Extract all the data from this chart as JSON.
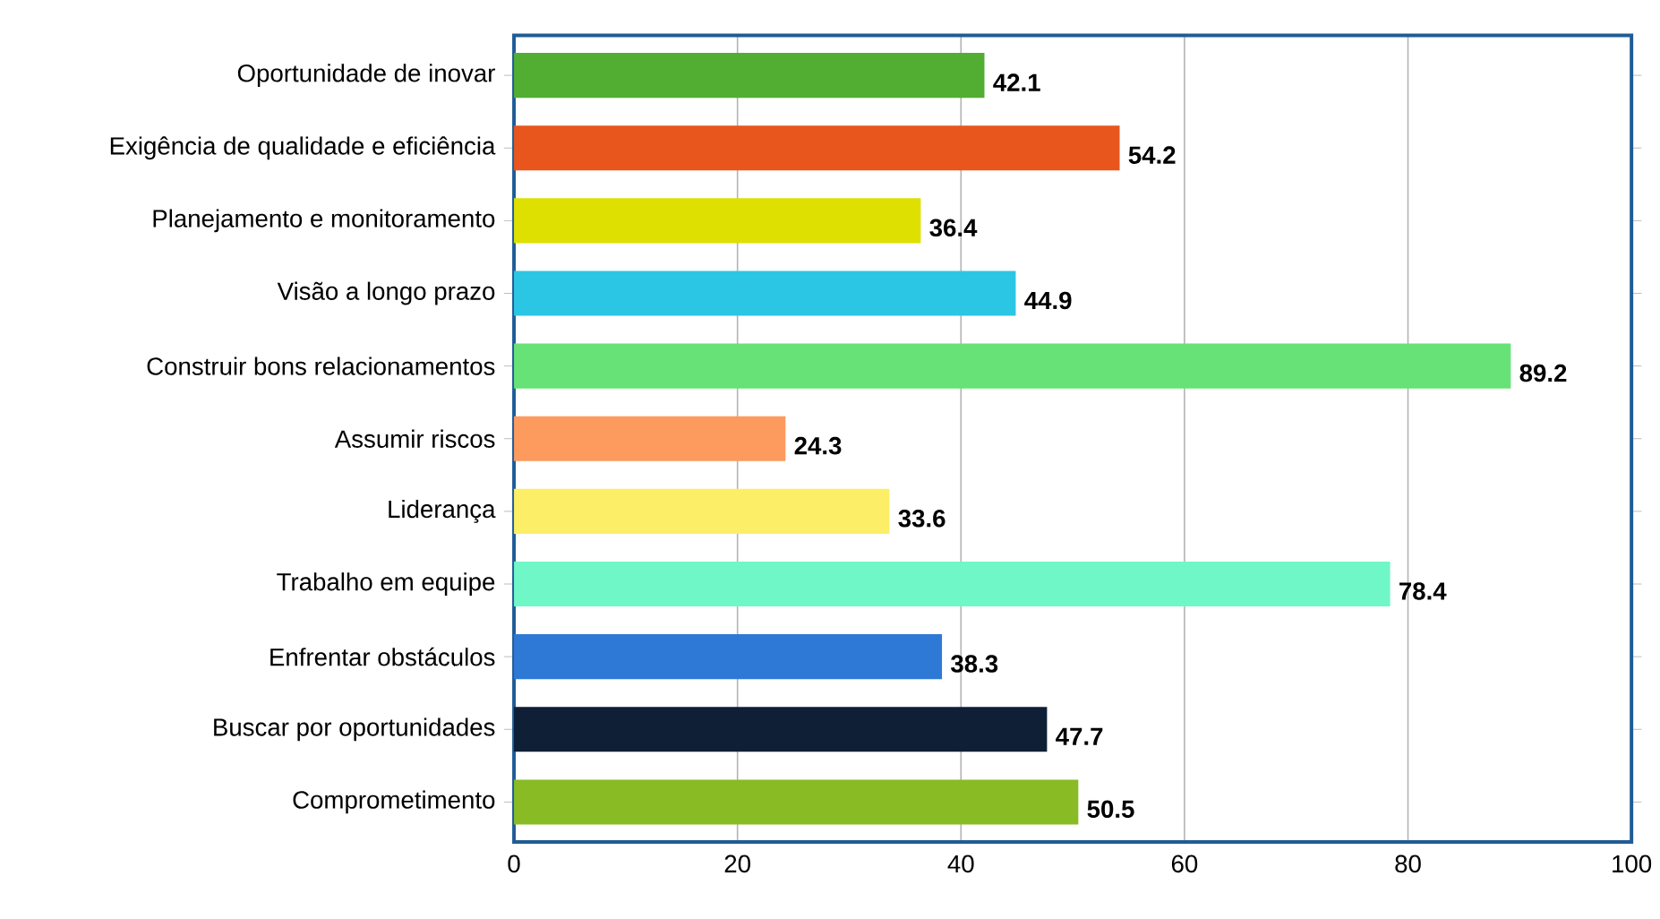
{
  "chart_data": {
    "type": "bar",
    "orientation": "horizontal",
    "categories": [
      "Oportunidade de inovar",
      "Exigência de qualidade e eficiência",
      "Planejamento e monitoramento",
      "Visão a longo prazo",
      "Construir bons relacionamentos",
      "Assumir riscos",
      "Liderança",
      "Trabalho em equipe",
      "Enfrentar obstáculos",
      "Buscar por oportunidades",
      "Comprometimento"
    ],
    "values": [
      42.1,
      54.2,
      36.4,
      44.9,
      89.2,
      24.3,
      33.6,
      78.4,
      38.3,
      47.7,
      50.5
    ],
    "colors": [
      "#52ad33",
      "#e8561e",
      "#dde000",
      "#2ac6e4",
      "#66e276",
      "#fd9a5e",
      "#fcee66",
      "#70f7c8",
      "#2f79d6",
      "#0e1f36",
      "#88bb24"
    ],
    "xlim": [
      0,
      100
    ],
    "xticks": [
      0,
      20,
      40,
      60,
      80,
      100
    ],
    "grid": "x",
    "data_labels": true
  }
}
